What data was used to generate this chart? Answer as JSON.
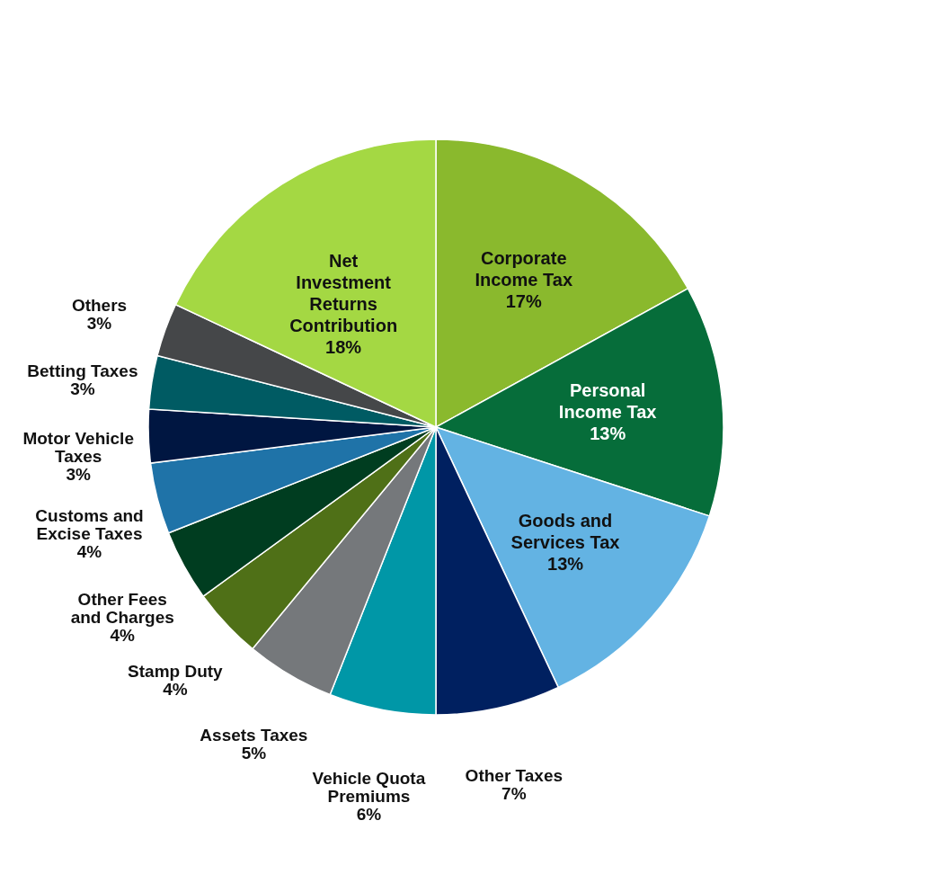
{
  "chart_data": {
    "type": "pie",
    "categories": [
      "Corporate Income Tax",
      "Personal Income Tax",
      "Goods and Services Tax",
      "Other Taxes",
      "Vehicle Quota Premiums",
      "Assets Taxes",
      "Stamp Duty",
      "Other Fees and Charges",
      "Customs and Excise Taxes",
      "Motor Vehicle Taxes",
      "Betting Taxes",
      "Others",
      "Net Investment Returns Contribution"
    ],
    "values": [
      17,
      13,
      13,
      7,
      6,
      5,
      4,
      4,
      4,
      3,
      3,
      3,
      18
    ],
    "value_labels": [
      "17%",
      "13%",
      "13%",
      "7%",
      "6%",
      "5%",
      "4%",
      "4%",
      "4%",
      "3%",
      "3%",
      "3%",
      "18%"
    ],
    "colors": [
      "#8ab92d",
      "#066d3a",
      "#63b3e3",
      "#002060",
      "#0097a7",
      "#75787b",
      "#4f7017",
      "#003d20",
      "#1f73a8",
      "#001641",
      "#005b63",
      "#454749",
      "#a4d843"
    ],
    "legend": false
  }
}
